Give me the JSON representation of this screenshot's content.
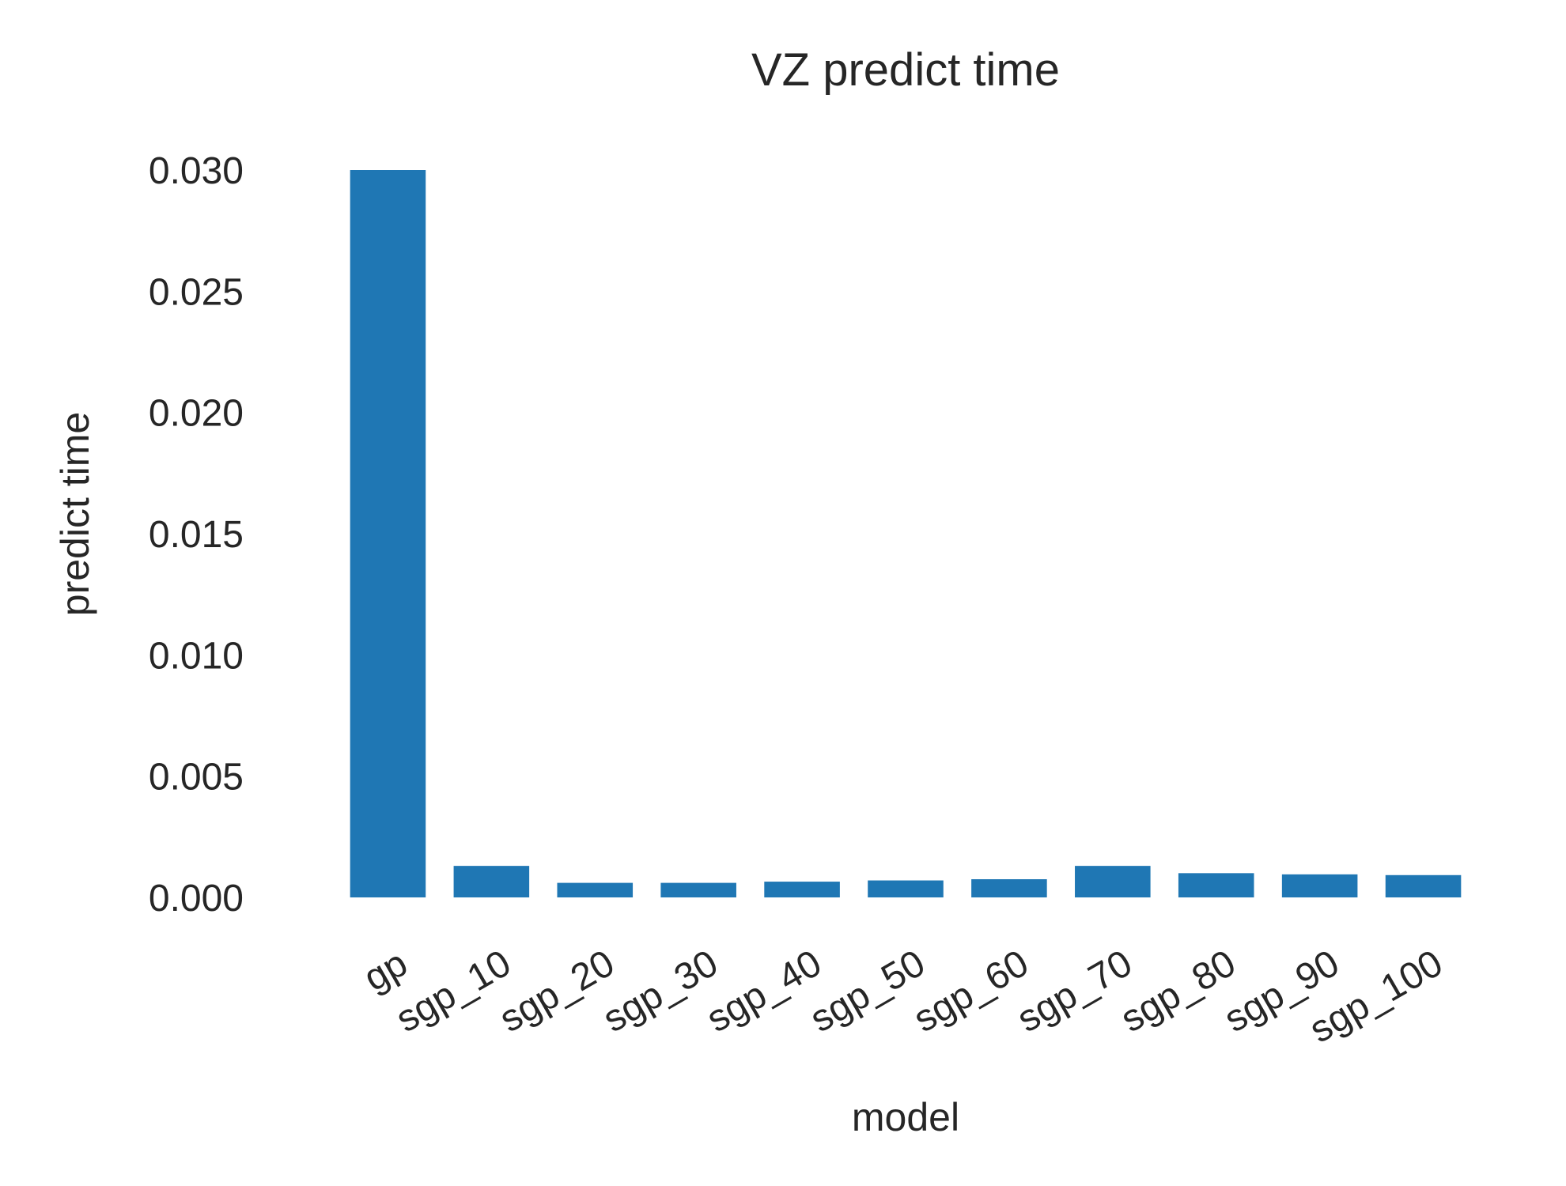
{
  "chart_data": {
    "type": "bar",
    "title": "VZ predict time",
    "xlabel": "model",
    "ylabel": "predict time",
    "categories": [
      "gp",
      "sgp_10",
      "sgp_20",
      "sgp_30",
      "sgp_40",
      "sgp_50",
      "sgp_60",
      "sgp_70",
      "sgp_80",
      "sgp_90",
      "sgp_100"
    ],
    "values": [
      0.03,
      0.0013,
      0.0006,
      0.0006,
      0.00065,
      0.0007,
      0.00075,
      0.0013,
      0.001,
      0.00095,
      0.00092
    ],
    "ylim": [
      0,
      0.03
    ],
    "yticks": [
      "0.000",
      "0.005",
      "0.010",
      "0.015",
      "0.020",
      "0.025",
      "0.030"
    ],
    "grid": false,
    "legend": "none",
    "bar_color": "#1f77b4",
    "text_color": "#262626"
  }
}
